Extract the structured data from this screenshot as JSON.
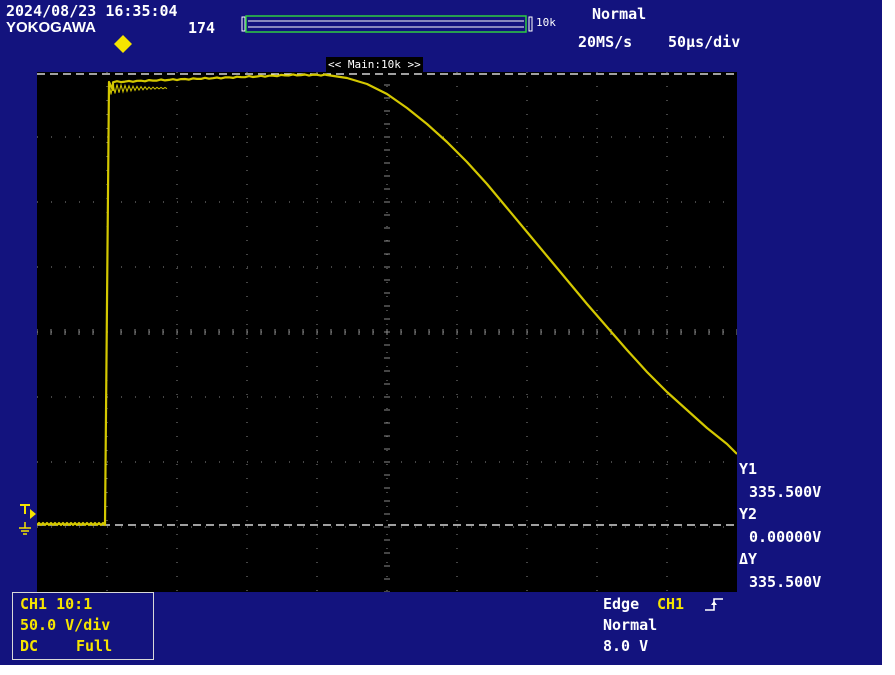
{
  "header": {
    "datetime": "2024/08/23 16:35:04",
    "brand": "YOKOGAWA",
    "acq_count": "174",
    "record_length": "10k",
    "trigger_mode": "Normal",
    "sample_rate": "20MS/s",
    "timebase": "50μs/div",
    "zoom_label": "<< Main:10k >>"
  },
  "channel_box": {
    "line1": "CH1 10:1",
    "line2": "50.0 V/div",
    "coupling": "DC",
    "bandwidth": "Full"
  },
  "trigger_box": {
    "type": "Edge",
    "source": "CH1",
    "mode": "Normal",
    "level": "8.0 V"
  },
  "cursors": {
    "y1_label": "Y1",
    "y1_value": "335.500V",
    "y2_label": "Y2",
    "y2_value": "0.00000V",
    "dy_label": "ΔY",
    "dy_value": "335.500V"
  },
  "colors": {
    "background": "#13137e",
    "grid": "#000000",
    "trace": "#d4c800",
    "text": "#ffffff",
    "accent": "#f5e400"
  },
  "icons": {
    "brand_marker": "diamond-icon",
    "trigger_marker": "trigger-level-icon",
    "ground_marker": "ground-icon",
    "edge": "rising-edge-icon"
  }
}
